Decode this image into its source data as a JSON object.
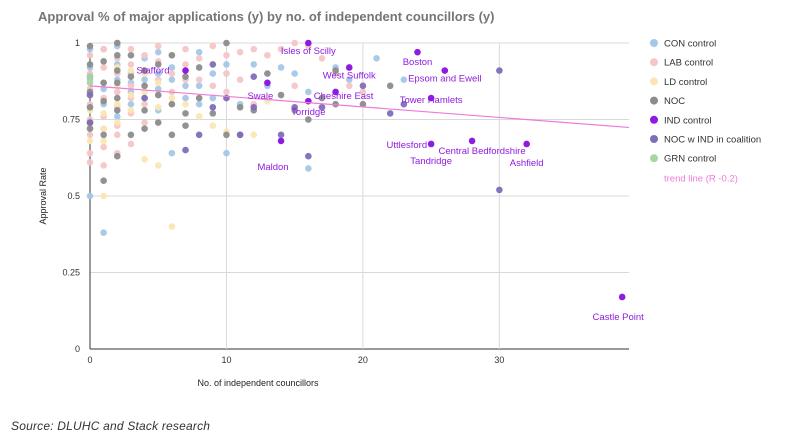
{
  "source_note": "Source: DLUHC and Stack research",
  "chart_data": {
    "type": "scatter",
    "title": "Approval % of major applications (y) by no. of independent councillors (y)",
    "xlabel": "No. of independent councillors",
    "ylabel": "Approval Rate",
    "xlim": [
      0,
      39.5
    ],
    "ylim": [
      0,
      1
    ],
    "x_ticks": [
      "0",
      "10",
      "20",
      "30"
    ],
    "y_ticks": [
      "0",
      "0.25",
      "0.5",
      "0.75",
      "1"
    ],
    "grid": true,
    "legend_position": "right",
    "colors": {
      "CON": "#a4c8e8",
      "LAB": "#f4c6c6",
      "LD": "#fbe6b3",
      "NOC": "#8c8c8c",
      "IND": "#8f1be0",
      "NOCIND": "#7f6db8",
      "GRN": "#a6d6a6",
      "trend": "#f07ad8",
      "label": "#8f1be0"
    },
    "trend_line": {
      "label": "trend line (R -0.2)",
      "x0": 0,
      "y0": 0.86,
      "x1": 39.5,
      "y1": 0.724
    },
    "series": [
      {
        "name": "CON control",
        "key": "CON",
        "points": [
          [
            0,
            0.5
          ],
          [
            1,
            0.38
          ],
          [
            0,
            0.92
          ],
          [
            0,
            0.88
          ],
          [
            1,
            0.85
          ],
          [
            1,
            0.8
          ],
          [
            2,
            0.76
          ],
          [
            2,
            0.88
          ],
          [
            2,
            0.93
          ],
          [
            3,
            0.8
          ],
          [
            3,
            0.84
          ],
          [
            3,
            0.87
          ],
          [
            3,
            0.9
          ],
          [
            4,
            0.82
          ],
          [
            4,
            0.88
          ],
          [
            4,
            0.95
          ],
          [
            5,
            0.9
          ],
          [
            5,
            0.85
          ],
          [
            5,
            0.78
          ],
          [
            6,
            0.92
          ],
          [
            6,
            0.88
          ],
          [
            6,
            0.64
          ],
          [
            7,
            0.86
          ],
          [
            7,
            0.82
          ],
          [
            8,
            0.86
          ],
          [
            8,
            0.8
          ],
          [
            9,
            0.82
          ],
          [
            9,
            0.9
          ],
          [
            10,
            0.93
          ],
          [
            10,
            0.64
          ],
          [
            11,
            0.8
          ],
          [
            12,
            0.93
          ],
          [
            13,
            0.86
          ],
          [
            14,
            0.92
          ],
          [
            15,
            0.9
          ],
          [
            16,
            0.59
          ],
          [
            16,
            0.84
          ],
          [
            18,
            0.92
          ],
          [
            19,
            0.88
          ],
          [
            21,
            0.95
          ],
          [
            23,
            0.88
          ],
          [
            1,
            0.98
          ],
          [
            0,
            0.98
          ],
          [
            5,
            0.97
          ],
          [
            8,
            0.97
          ],
          [
            2,
            0.99
          ]
        ]
      },
      {
        "name": "LAB control",
        "key": "LAB",
        "points": [
          [
            0,
            0.96
          ],
          [
            0,
            0.9
          ],
          [
            0,
            0.85
          ],
          [
            0,
            0.8
          ],
          [
            0,
            0.75
          ],
          [
            0,
            0.7
          ],
          [
            0,
            0.64
          ],
          [
            0,
            0.61
          ],
          [
            1,
            0.98
          ],
          [
            1,
            0.92
          ],
          [
            1,
            0.87
          ],
          [
            1,
            0.82
          ],
          [
            1,
            0.76
          ],
          [
            1,
            0.72
          ],
          [
            1,
            0.66
          ],
          [
            1,
            0.6
          ],
          [
            2,
            1.0
          ],
          [
            2,
            0.95
          ],
          [
            2,
            0.9
          ],
          [
            2,
            0.84
          ],
          [
            2,
            0.79
          ],
          [
            2,
            0.73
          ],
          [
            2,
            0.7
          ],
          [
            2,
            0.64
          ],
          [
            3,
            0.98
          ],
          [
            3,
            0.93
          ],
          [
            3,
            0.86
          ],
          [
            3,
            0.82
          ],
          [
            3,
            0.77
          ],
          [
            3,
            0.67
          ],
          [
            4,
            0.96
          ],
          [
            4,
            0.91
          ],
          [
            4,
            0.86
          ],
          [
            4,
            0.8
          ],
          [
            4,
            0.74
          ],
          [
            5,
            0.99
          ],
          [
            5,
            0.94
          ],
          [
            5,
            0.88
          ],
          [
            5,
            0.83
          ],
          [
            6,
            0.96
          ],
          [
            6,
            0.9
          ],
          [
            6,
            0.84
          ],
          [
            6,
            0.8
          ],
          [
            7,
            0.98
          ],
          [
            7,
            0.93
          ],
          [
            7,
            0.88
          ],
          [
            8,
            0.95
          ],
          [
            8,
            0.88
          ],
          [
            9,
            0.99
          ],
          [
            9,
            0.86
          ],
          [
            10,
            0.96
          ],
          [
            10,
            0.9
          ],
          [
            10,
            0.84
          ],
          [
            11,
            0.97
          ],
          [
            11,
            0.88
          ],
          [
            12,
            0.98
          ],
          [
            12,
            0.8
          ],
          [
            13,
            0.96
          ],
          [
            14,
            0.98
          ],
          [
            15,
            1.0
          ],
          [
            16,
            0.99
          ],
          [
            17,
            0.95
          ],
          [
            18,
            0.9
          ],
          [
            19,
            0.86
          ],
          [
            20,
            0.84
          ],
          [
            15,
            0.86
          ]
        ]
      },
      {
        "name": "LD control",
        "key": "LD",
        "points": [
          [
            0,
            0.87
          ],
          [
            0,
            0.83
          ],
          [
            0,
            0.78
          ],
          [
            0,
            0.73
          ],
          [
            0,
            0.68
          ],
          [
            1,
            0.5
          ],
          [
            1,
            0.77
          ],
          [
            1,
            0.72
          ],
          [
            1,
            0.68
          ],
          [
            2,
            0.92
          ],
          [
            2,
            0.86
          ],
          [
            2,
            0.8
          ],
          [
            2,
            0.74
          ],
          [
            3,
            0.91
          ],
          [
            3,
            0.83
          ],
          [
            3,
            0.78
          ],
          [
            4,
            0.9
          ],
          [
            4,
            0.84
          ],
          [
            4,
            0.62
          ],
          [
            5,
            0.87
          ],
          [
            5,
            0.79
          ],
          [
            5,
            0.74
          ],
          [
            5,
            0.6
          ],
          [
            6,
            0.82
          ],
          [
            6,
            0.4
          ],
          [
            7,
            0.8
          ],
          [
            8,
            0.76
          ],
          [
            9,
            0.73
          ],
          [
            10,
            0.71
          ],
          [
            11,
            0.7
          ],
          [
            12,
            0.7
          ],
          [
            13,
            0.81
          ]
        ]
      },
      {
        "name": "NOC",
        "key": "NOC",
        "points": [
          [
            0,
            0.99
          ],
          [
            0,
            0.93
          ],
          [
            0,
            0.89
          ],
          [
            0,
            0.84
          ],
          [
            0,
            0.79
          ],
          [
            0,
            0.74
          ],
          [
            0,
            0.72
          ],
          [
            1,
            0.94
          ],
          [
            1,
            0.87
          ],
          [
            1,
            0.81
          ],
          [
            1,
            0.7
          ],
          [
            1,
            0.55
          ],
          [
            2,
            1.0
          ],
          [
            2,
            0.96
          ],
          [
            2,
            0.91
          ],
          [
            2,
            0.87
          ],
          [
            2,
            0.82
          ],
          [
            2,
            0.78
          ],
          [
            2,
            0.63
          ],
          [
            3,
            0.96
          ],
          [
            3,
            0.89
          ],
          [
            3,
            0.7
          ],
          [
            4,
            0.91
          ],
          [
            4,
            0.86
          ],
          [
            4,
            0.78
          ],
          [
            4,
            0.72
          ],
          [
            5,
            0.93
          ],
          [
            5,
            0.83
          ],
          [
            5,
            0.74
          ],
          [
            6,
            0.96
          ],
          [
            6,
            0.8
          ],
          [
            6,
            0.7
          ],
          [
            7,
            0.89
          ],
          [
            7,
            0.77
          ],
          [
            7,
            0.73
          ],
          [
            8,
            0.92
          ],
          [
            8,
            0.82
          ],
          [
            9,
            0.77
          ],
          [
            10,
            0.7
          ],
          [
            10,
            1.0
          ],
          [
            11,
            0.79
          ],
          [
            11,
            0.7
          ],
          [
            12,
            0.78
          ],
          [
            13,
            0.9
          ],
          [
            14,
            0.83
          ],
          [
            15,
            0.78
          ],
          [
            16,
            0.75
          ],
          [
            17,
            0.82
          ],
          [
            18,
            0.91
          ],
          [
            18,
            0.8
          ],
          [
            20,
            0.8
          ],
          [
            22,
            0.86
          ]
        ]
      },
      {
        "name": "IND control",
        "key": "IND",
        "points": [
          [
            7,
            0.91
          ],
          [
            13,
            0.87
          ],
          [
            14,
            0.68
          ],
          [
            16,
            1.0
          ],
          [
            16,
            0.81
          ],
          [
            18,
            0.84
          ],
          [
            19,
            0.92
          ],
          [
            24,
            0.97
          ],
          [
            25,
            0.82
          ],
          [
            25,
            0.67
          ],
          [
            26,
            0.91
          ],
          [
            28,
            0.68
          ],
          [
            32,
            0.67
          ],
          [
            39,
            0.17
          ]
        ]
      },
      {
        "name": "NOC w IND in coalition",
        "key": "NOCIND",
        "points": [
          [
            0,
            0.83
          ],
          [
            0,
            0.74
          ],
          [
            4,
            0.82
          ],
          [
            7,
            0.65
          ],
          [
            8,
            0.7
          ],
          [
            9,
            0.93
          ],
          [
            9,
            0.79
          ],
          [
            10,
            0.82
          ],
          [
            11,
            0.7
          ],
          [
            12,
            0.89
          ],
          [
            12,
            0.79
          ],
          [
            14,
            0.7
          ],
          [
            15,
            0.79
          ],
          [
            16,
            0.63
          ],
          [
            17,
            0.79
          ],
          [
            20,
            0.86
          ],
          [
            22,
            0.77
          ],
          [
            23,
            0.8
          ],
          [
            30,
            0.91
          ],
          [
            30,
            0.52
          ]
        ]
      },
      {
        "name": "GRN control",
        "key": "GRN",
        "points": [
          [
            0,
            0.89
          ],
          [
            0,
            0.87
          ]
        ]
      }
    ],
    "labels": [
      {
        "text": "Stafford",
        "x": 7,
        "y": 0.91
      },
      {
        "text": "Isles of Scilly",
        "x": 16,
        "y": 1.0
      },
      {
        "text": "West Suffolk",
        "x": 19,
        "y": 0.92
      },
      {
        "text": "Boston",
        "x": 24,
        "y": 0.97
      },
      {
        "text": "Swale",
        "x": 13,
        "y": 0.87
      },
      {
        "text": "Epsom and Ewell",
        "x": 26,
        "y": 0.91
      },
      {
        "text": "Cheshire East",
        "x": 18,
        "y": 0.84
      },
      {
        "text": "Torridge",
        "x": 16,
        "y": 0.81
      },
      {
        "text": "Tower Hamlets",
        "x": 25,
        "y": 0.82
      },
      {
        "text": "Maldon",
        "x": 14,
        "y": 0.68
      },
      {
        "text": "Uttlesford",
        "x": 25,
        "y": 0.67
      },
      {
        "text": "Central Bedfordshire",
        "x": 28,
        "y": 0.68
      },
      {
        "text": "Tandridge",
        "x": 25,
        "y": 0.67
      },
      {
        "text": "Ashfield",
        "x": 32,
        "y": 0.67
      },
      {
        "text": "Castle Point",
        "x": 39,
        "y": 0.17
      }
    ]
  }
}
